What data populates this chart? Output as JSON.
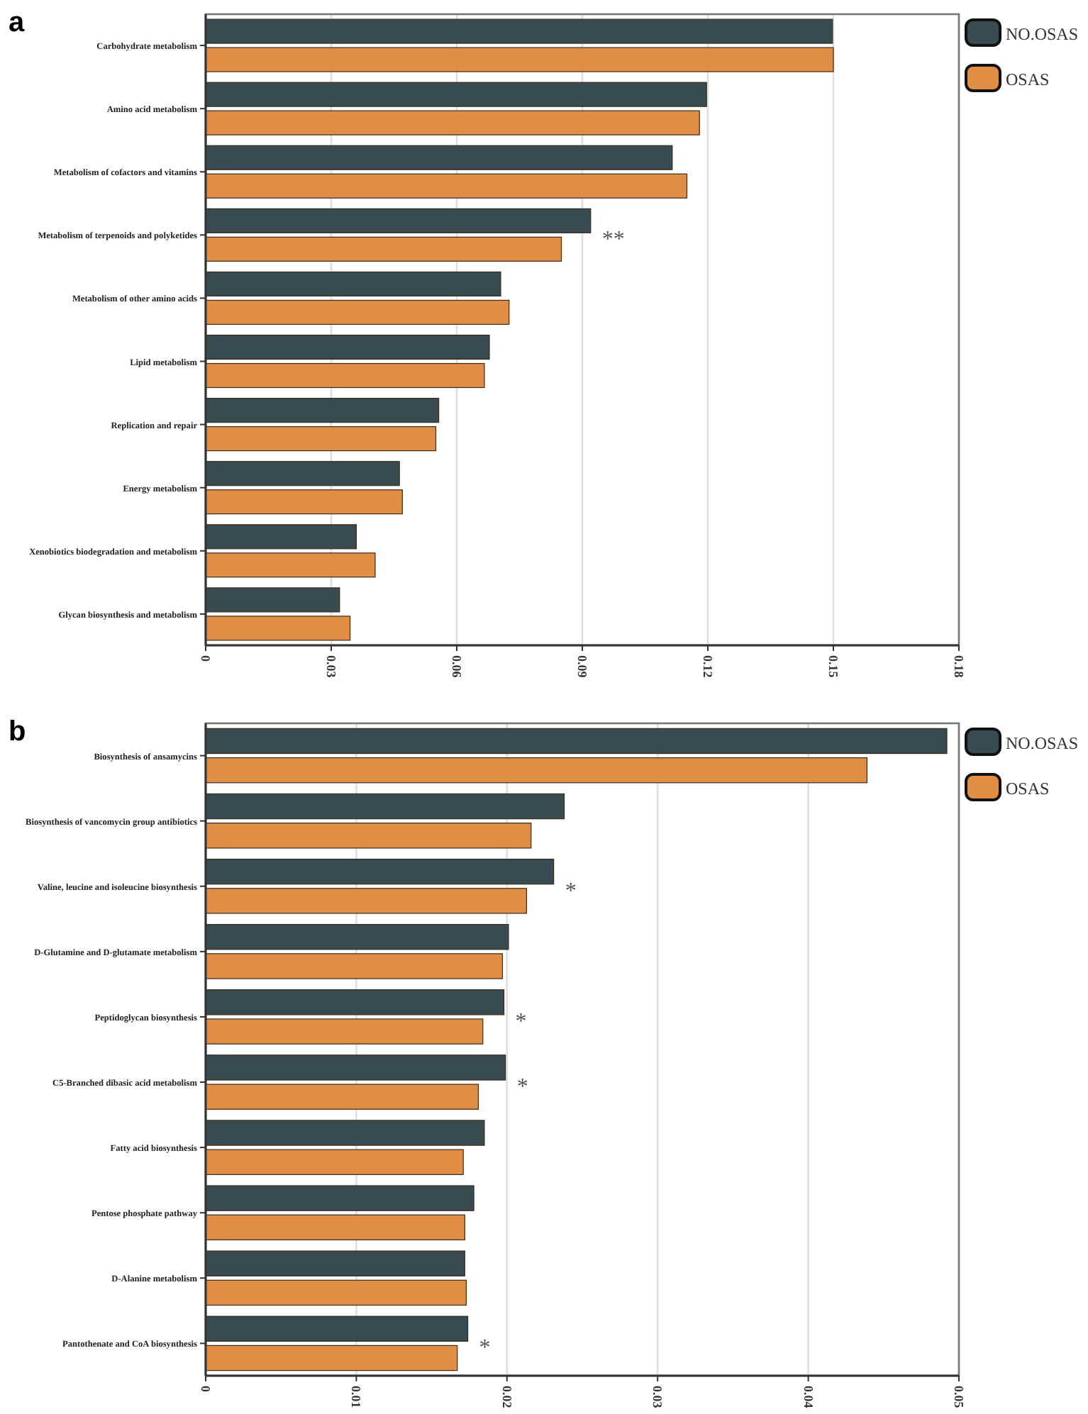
{
  "chart_data": [
    {
      "type": "bar",
      "orientation": "horizontal",
      "title": "a",
      "categories": [
        "Carbohydrate metabolism",
        "Amino acid metabolism",
        "Metabolism of cofactors and vitamins",
        "Metabolism of terpenoids and polyketides",
        "Metabolism of other amino acids",
        "Lipid metabolism",
        "Replication and repair",
        "Energy metabolism",
        "Xenobiotics biodegradation and metabolism",
        "Glycan biosynthesis and metabolism"
      ],
      "series": [
        {
          "name": "NO.OSAS",
          "color": "#374b51",
          "values": [
            0.1498,
            0.1197,
            0.1115,
            0.092,
            0.0705,
            0.0678,
            0.0557,
            0.0463,
            0.036,
            0.032
          ]
        },
        {
          "name": "OSAS",
          "color": "#e08e45",
          "values": [
            0.15,
            0.118,
            0.115,
            0.085,
            0.0725,
            0.0666,
            0.055,
            0.047,
            0.0405,
            0.0345
          ]
        }
      ],
      "xlim": [
        0,
        0.18
      ],
      "xticks": [
        {
          "value": 0,
          "label": "0"
        },
        {
          "value": 0.03,
          "label": "0.03"
        },
        {
          "value": 0.06,
          "label": "0.06"
        },
        {
          "value": 0.09,
          "label": "0.09"
        },
        {
          "value": 0.12,
          "label": "0.12"
        },
        {
          "value": 0.15,
          "label": "0.15"
        },
        {
          "value": 0.18,
          "label": "0.18"
        }
      ],
      "grid": "x",
      "legend": "top right",
      "annotations": [
        "**"
      ]
    },
    {
      "type": "bar",
      "orientation": "horizontal",
      "title": "b",
      "categories": [
        "Biosynthesis of ansamycins",
        "Biosynthesis of vancomycin group antibiotics",
        "Valine, leucine and isoleucine biosynthesis",
        "D-Glutamine and D-glutamate metabolism",
        "Peptidoglycan biosynthesis",
        "C5-Branched dibasic acid metabolism",
        "Fatty acid biosynthesis",
        "Pentose phosphate pathway",
        "D-Alanine metabolism",
        "Pantothenate and CoA biosynthesis"
      ],
      "series": [
        {
          "name": "NO.OSAS",
          "color": "#374b51",
          "values": [
            0.0492,
            0.0238,
            0.0231,
            0.0201,
            0.0198,
            0.0199,
            0.0185,
            0.0178,
            0.0172,
            0.0174
          ]
        },
        {
          "name": "OSAS",
          "color": "#e08e45",
          "values": [
            0.0439,
            0.0216,
            0.0213,
            0.0197,
            0.0184,
            0.0181,
            0.0171,
            0.0172,
            0.0173,
            0.0167
          ]
        }
      ],
      "xlim": [
        0,
        0.05
      ],
      "xticks": [
        {
          "value": 0,
          "label": "0"
        },
        {
          "value": 0.01,
          "label": "0.01"
        },
        {
          "value": 0.02,
          "label": "0.02"
        },
        {
          "value": 0.03,
          "label": "0.03"
        },
        {
          "value": 0.04,
          "label": "0.04"
        },
        {
          "value": 0.05,
          "label": "0.05"
        }
      ],
      "grid": "x",
      "legend": "top right",
      "annotations": [
        "*",
        "*",
        "*",
        "*"
      ]
    }
  ]
}
